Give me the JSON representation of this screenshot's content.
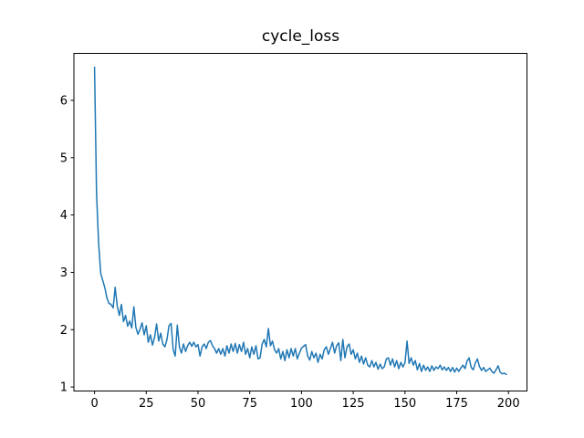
{
  "figure": {
    "background": "#ffffff"
  },
  "chart_data": {
    "type": "line",
    "title": "cycle_loss",
    "xlabel": "",
    "ylabel": "",
    "grid": false,
    "legend": false,
    "axis_color": "#000000",
    "tick_label_color": "#000000",
    "xticks": [
      0,
      25,
      50,
      75,
      100,
      125,
      150,
      175,
      200
    ],
    "yticks": [
      1,
      2,
      3,
      4,
      5,
      6
    ],
    "xlim": [
      -9.95,
      208.95
    ],
    "ylim": [
      0.93,
      6.82
    ],
    "series": [
      {
        "name": "cycle_loss",
        "color": "#1f77b4",
        "x_start": 0,
        "x_step": 1,
        "values": [
          6.58,
          4.37,
          3.5,
          2.98,
          2.86,
          2.73,
          2.55,
          2.46,
          2.44,
          2.38,
          2.74,
          2.41,
          2.25,
          2.44,
          2.14,
          2.25,
          2.06,
          2.15,
          2.03,
          2.4,
          2.04,
          1.92,
          2.01,
          2.12,
          1.91,
          2.07,
          1.78,
          1.91,
          1.73,
          1.86,
          2.1,
          1.8,
          1.94,
          1.75,
          1.7,
          1.83,
          2.07,
          2.11,
          1.65,
          1.54,
          2.08,
          1.7,
          1.59,
          1.75,
          1.62,
          1.72,
          1.78,
          1.71,
          1.78,
          1.7,
          1.74,
          1.54,
          1.7,
          1.75,
          1.67,
          1.78,
          1.81,
          1.72,
          1.67,
          1.59,
          1.67,
          1.57,
          1.67,
          1.54,
          1.72,
          1.59,
          1.75,
          1.62,
          1.76,
          1.59,
          1.74,
          1.62,
          1.78,
          1.57,
          1.67,
          1.51,
          1.7,
          1.57,
          1.72,
          1.49,
          1.51,
          1.75,
          1.83,
          1.7,
          2.02,
          1.72,
          1.8,
          1.65,
          1.59,
          1.67,
          1.49,
          1.62,
          1.46,
          1.65,
          1.51,
          1.67,
          1.54,
          1.67,
          1.49,
          1.59,
          1.68,
          1.71,
          1.74,
          1.54,
          1.47,
          1.62,
          1.51,
          1.59,
          1.43,
          1.57,
          1.49,
          1.65,
          1.7,
          1.57,
          1.67,
          1.78,
          1.59,
          1.72,
          1.77,
          1.46,
          1.83,
          1.51,
          1.7,
          1.75,
          1.57,
          1.65,
          1.49,
          1.59,
          1.43,
          1.54,
          1.4,
          1.51,
          1.38,
          1.35,
          1.46,
          1.35,
          1.43,
          1.31,
          1.4,
          1.32,
          1.35,
          1.49,
          1.51,
          1.38,
          1.49,
          1.35,
          1.46,
          1.32,
          1.43,
          1.35,
          1.42,
          1.8,
          1.41,
          1.51,
          1.38,
          1.46,
          1.3,
          1.41,
          1.27,
          1.38,
          1.29,
          1.35,
          1.27,
          1.37,
          1.29,
          1.35,
          1.32,
          1.38,
          1.3,
          1.35,
          1.29,
          1.34,
          1.27,
          1.34,
          1.26,
          1.33,
          1.27,
          1.33,
          1.38,
          1.32,
          1.45,
          1.51,
          1.34,
          1.3,
          1.42,
          1.49,
          1.36,
          1.29,
          1.34,
          1.27,
          1.3,
          1.33,
          1.27,
          1.24,
          1.3,
          1.37,
          1.26,
          1.23,
          1.24,
          1.22
        ]
      }
    ]
  }
}
